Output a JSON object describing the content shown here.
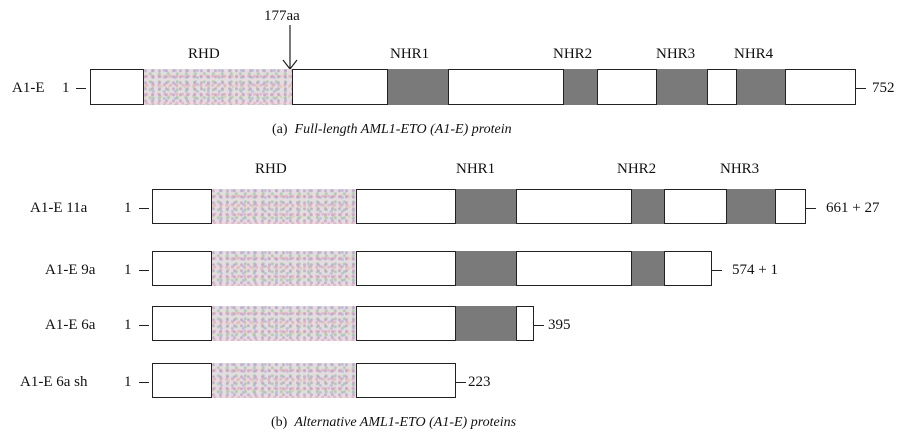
{
  "panel_a": {
    "arrow_label": "177aa",
    "row": {
      "name": "A1-E",
      "start": "1",
      "end": "752"
    },
    "domains": {
      "rhd": "RHD",
      "nhr1": "NHR1",
      "nhr2": "NHR2",
      "nhr3": "NHR3",
      "nhr4": "NHR4"
    },
    "caption": {
      "prefix": "(a)",
      "text": "Full-length AML1-ETO (A1-E) protein"
    }
  },
  "panel_b": {
    "domains": {
      "rhd": "RHD",
      "nhr1": "NHR1",
      "nhr2": "NHR2",
      "nhr3": "NHR3"
    },
    "rows": [
      {
        "name": "A1-E 11a",
        "start": "1",
        "end": "661 + 27"
      },
      {
        "name": "A1-E 9a",
        "start": "1",
        "end": "574 + 1"
      },
      {
        "name": "A1-E 6a",
        "start": "1",
        "end": "395"
      },
      {
        "name": "A1-E 6a sh",
        "start": "1",
        "end": "223"
      }
    ],
    "caption": {
      "prefix": "(b)",
      "text": "Alternative AML1-ETO (A1-E) proteins"
    }
  },
  "colors": {
    "nhr_fill": "#7a7a7a",
    "outline": "#222222"
  },
  "icons": {
    "arrow": "down-arrow-icon"
  }
}
